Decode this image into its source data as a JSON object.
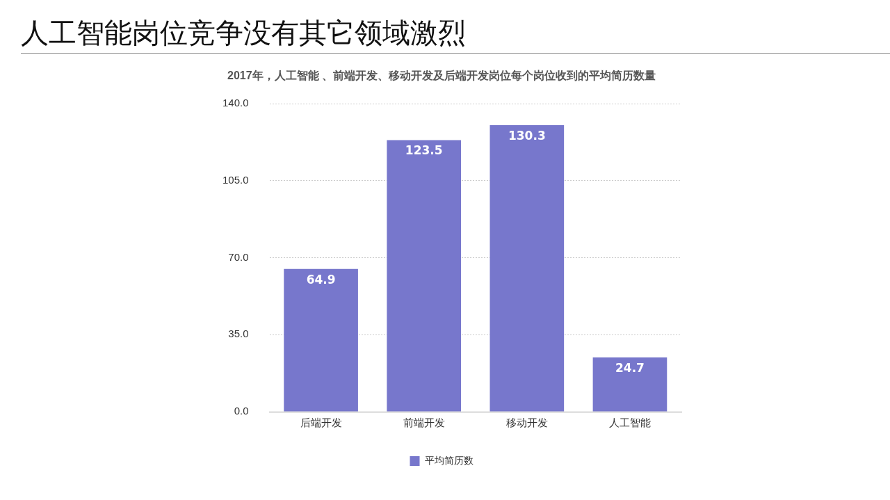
{
  "chart_data": {
    "type": "bar",
    "title": "人工智能岗位竞争没有其它领域激烈",
    "subtitle": "2017年，人工智能 、前端开发、移动开发及后端开发岗位每个岗位收到的平均简历数量",
    "categories": [
      "后端开发",
      "前端开发",
      "移动开发",
      "人工智能"
    ],
    "series": [
      {
        "name": "平均简历数",
        "color": "#7777cc",
        "values": [
          64.9,
          123.5,
          130.3,
          24.7
        ]
      }
    ],
    "ylim": [
      0,
      140
    ],
    "yticks": [
      {
        "value": 0,
        "label": "0.0"
      },
      {
        "value": 35,
        "label": "35.0"
      },
      {
        "value": 70,
        "label": "70.0"
      },
      {
        "value": 105,
        "label": "105.0"
      },
      {
        "value": 140,
        "label": "140.0"
      }
    ],
    "grid": "y",
    "legend": "bottom",
    "data_labels": true
  }
}
